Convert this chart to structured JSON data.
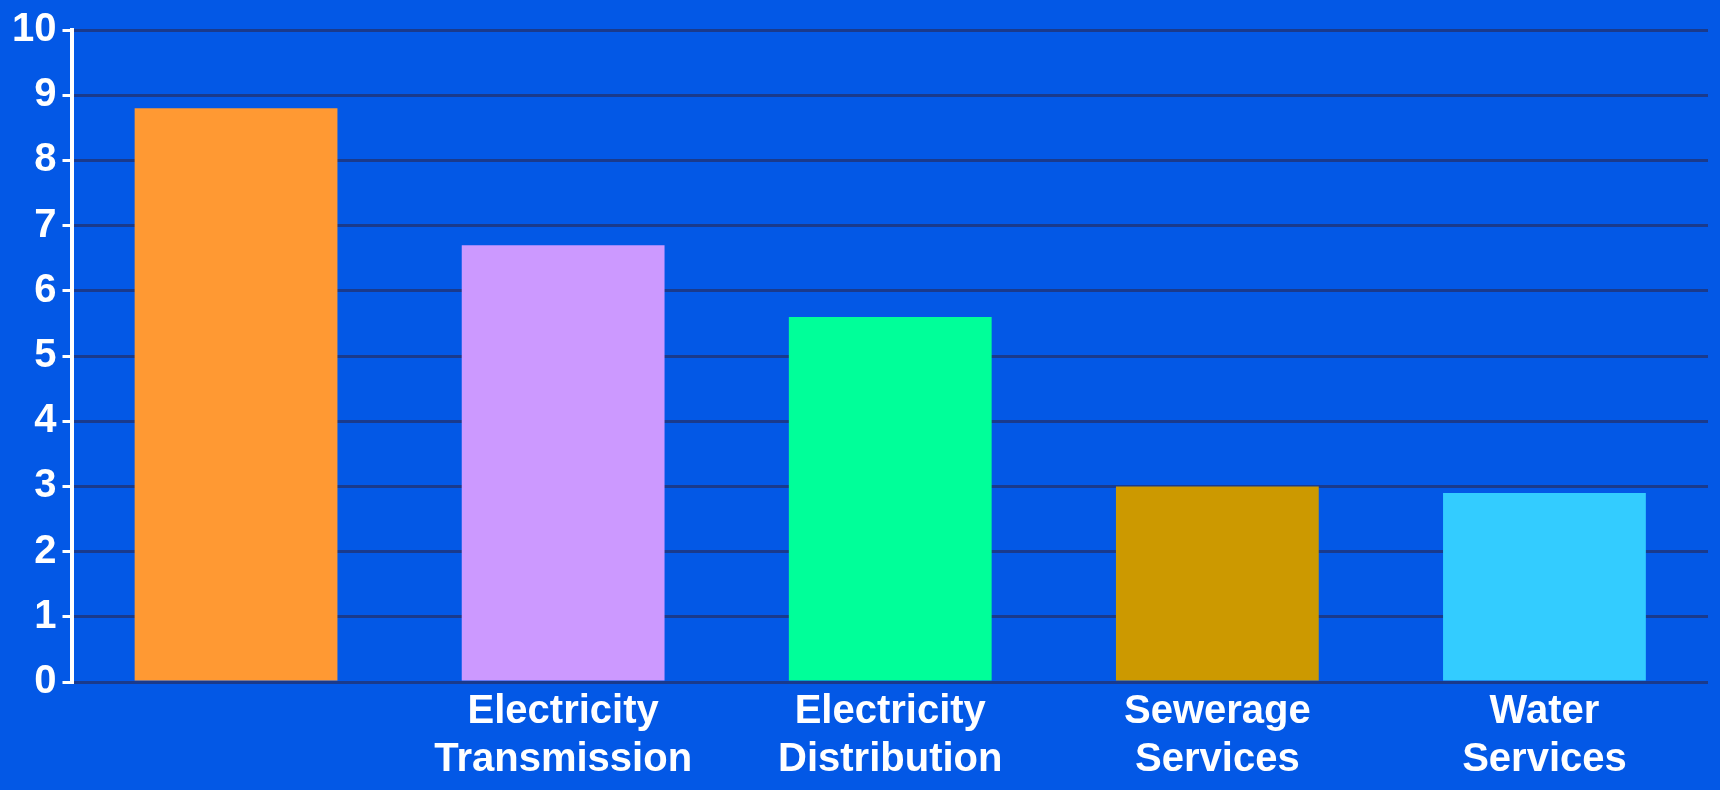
{
  "chart_data": {
    "type": "bar",
    "categories": [
      null,
      "Electricity Transmission",
      "Electricity Distribution",
      "Sewerage Services",
      "Water Services"
    ],
    "values": [
      8.8,
      6.7,
      5.6,
      3.0,
      2.9
    ],
    "colors": [
      "#ff9933",
      "#cc99ff",
      "#00ff99",
      "#cc9900",
      "#33ccff"
    ],
    "ylim": [
      0,
      10
    ],
    "yticks": [
      0,
      1,
      2,
      3,
      4,
      5,
      6,
      7,
      8,
      9,
      10
    ],
    "grid": "y",
    "legend": false
  }
}
